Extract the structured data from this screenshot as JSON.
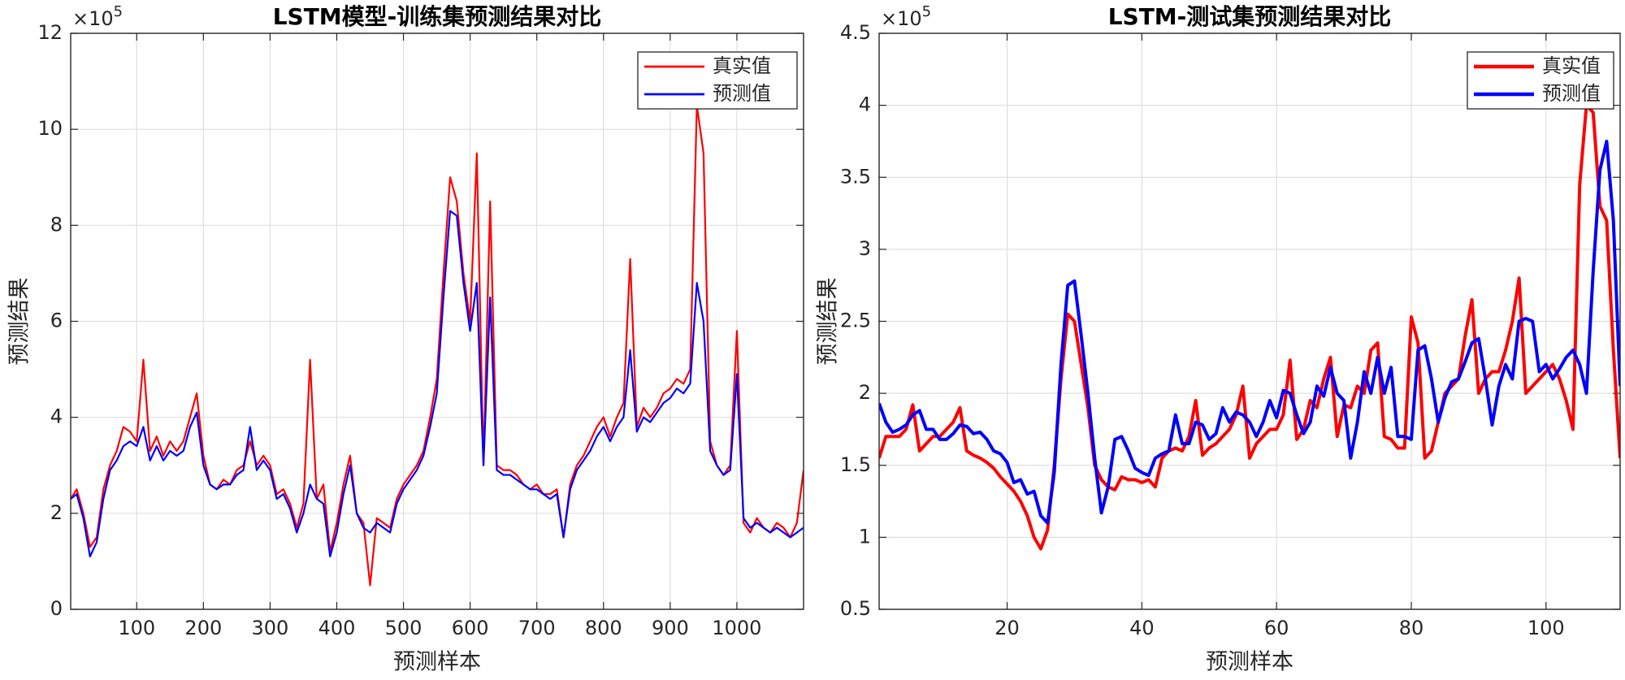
{
  "chart_data": [
    {
      "type": "line",
      "title": "LSTM模型-训练集预测结果对比",
      "xlabel": "预测样本",
      "ylabel": "预测结果",
      "y_multiplier": {
        "base": "×10",
        "power": "5"
      },
      "x": [
        1,
        10,
        20,
        30,
        40,
        50,
        60,
        70,
        80,
        90,
        100,
        110,
        120,
        130,
        140,
        150,
        160,
        170,
        180,
        190,
        200,
        210,
        220,
        230,
        240,
        250,
        260,
        270,
        280,
        290,
        300,
        310,
        320,
        330,
        340,
        350,
        360,
        370,
        380,
        390,
        400,
        410,
        420,
        430,
        440,
        450,
        460,
        470,
        480,
        490,
        500,
        510,
        520,
        530,
        540,
        550,
        560,
        570,
        580,
        590,
        600,
        610,
        620,
        630,
        640,
        650,
        660,
        670,
        680,
        690,
        700,
        710,
        720,
        730,
        740,
        750,
        760,
        770,
        780,
        790,
        800,
        810,
        820,
        830,
        840,
        850,
        860,
        870,
        880,
        890,
        900,
        910,
        920,
        930,
        940,
        950,
        960,
        970,
        980,
        990,
        1000,
        1010,
        1020,
        1030,
        1040,
        1050,
        1060,
        1070,
        1080,
        1090,
        1100
      ],
      "series": [
        {
          "name": "真实值",
          "color": "#ff0000",
          "values": [
            2.3,
            2.5,
            2.0,
            1.3,
            1.5,
            2.5,
            3.0,
            3.3,
            3.8,
            3.7,
            3.5,
            5.2,
            3.3,
            3.6,
            3.2,
            3.5,
            3.3,
            3.5,
            4.0,
            4.5,
            3.2,
            2.6,
            2.5,
            2.7,
            2.6,
            2.9,
            3.0,
            3.5,
            3.0,
            3.2,
            3.0,
            2.4,
            2.5,
            2.2,
            1.7,
            2.2,
            5.2,
            2.3,
            2.6,
            1.2,
            1.8,
            2.6,
            3.2,
            2.0,
            1.8,
            0.5,
            1.9,
            1.8,
            1.7,
            2.3,
            2.6,
            2.8,
            3.0,
            3.3,
            4.0,
            4.8,
            7.0,
            9.0,
            8.5,
            7.0,
            6.0,
            9.5,
            3.0,
            8.5,
            3.0,
            2.9,
            2.9,
            2.8,
            2.6,
            2.5,
            2.6,
            2.4,
            2.4,
            2.5,
            1.5,
            2.6,
            3.0,
            3.2,
            3.5,
            3.8,
            4.0,
            3.6,
            4.0,
            4.3,
            7.3,
            3.8,
            4.2,
            4.0,
            4.2,
            4.5,
            4.6,
            4.8,
            4.7,
            5.0,
            10.5,
            9.5,
            3.5,
            3.0,
            2.8,
            3.0,
            5.8,
            1.8,
            1.6,
            1.9,
            1.7,
            1.6,
            1.8,
            1.7,
            1.5,
            1.8,
            2.9
          ]
        },
        {
          "name": "预测值",
          "color": "#0000ff",
          "values": [
            2.3,
            2.4,
            1.9,
            1.1,
            1.4,
            2.3,
            2.9,
            3.1,
            3.4,
            3.5,
            3.4,
            3.8,
            3.1,
            3.4,
            3.1,
            3.3,
            3.2,
            3.3,
            3.8,
            4.1,
            3.0,
            2.6,
            2.5,
            2.6,
            2.6,
            2.8,
            2.9,
            3.8,
            2.9,
            3.1,
            2.9,
            2.3,
            2.4,
            2.1,
            1.6,
            2.0,
            2.6,
            2.3,
            2.2,
            1.1,
            1.6,
            2.4,
            3.0,
            2.0,
            1.7,
            1.6,
            1.8,
            1.7,
            1.6,
            2.2,
            2.5,
            2.7,
            2.9,
            3.2,
            3.8,
            4.5,
            6.5,
            8.3,
            8.2,
            6.8,
            5.8,
            6.8,
            3.0,
            6.5,
            2.9,
            2.8,
            2.8,
            2.7,
            2.6,
            2.5,
            2.5,
            2.4,
            2.3,
            2.4,
            1.5,
            2.5,
            2.9,
            3.1,
            3.3,
            3.6,
            3.8,
            3.5,
            3.8,
            4.0,
            5.4,
            3.7,
            4.0,
            3.9,
            4.1,
            4.3,
            4.4,
            4.6,
            4.5,
            4.7,
            6.8,
            6.0,
            3.3,
            3.0,
            2.8,
            2.9,
            4.9,
            1.9,
            1.7,
            1.8,
            1.7,
            1.6,
            1.7,
            1.6,
            1.5,
            1.6,
            1.7
          ]
        }
      ],
      "xlim": [
        1,
        1100
      ],
      "ylim": [
        0,
        12
      ],
      "xticks": [
        100,
        200,
        300,
        400,
        500,
        600,
        700,
        800,
        900,
        1000
      ],
      "yticks": [
        0,
        2,
        4,
        6,
        8,
        10,
        12
      ],
      "grid": true,
      "legend": "upper right"
    },
    {
      "type": "line",
      "title": "LSTM-测试集预测结果对比",
      "xlabel": "预测样本",
      "ylabel": "预测结果",
      "y_multiplier": {
        "base": "×10",
        "power": "5"
      },
      "x": [
        1,
        2,
        3,
        4,
        5,
        6,
        7,
        8,
        9,
        10,
        11,
        12,
        13,
        14,
        15,
        16,
        17,
        18,
        19,
        20,
        21,
        22,
        23,
        24,
        25,
        26,
        27,
        28,
        29,
        30,
        31,
        32,
        33,
        34,
        35,
        36,
        37,
        38,
        39,
        40,
        41,
        42,
        43,
        44,
        45,
        46,
        47,
        48,
        49,
        50,
        51,
        52,
        53,
        54,
        55,
        56,
        57,
        58,
        59,
        60,
        61,
        62,
        63,
        64,
        65,
        66,
        67,
        68,
        69,
        70,
        71,
        72,
        73,
        74,
        75,
        76,
        77,
        78,
        79,
        80,
        81,
        82,
        83,
        84,
        85,
        86,
        87,
        88,
        89,
        90,
        91,
        92,
        93,
        94,
        95,
        96,
        97,
        98,
        99,
        100,
        101,
        102,
        103,
        104,
        105,
        106,
        107,
        108,
        109,
        110,
        111
      ],
      "series": [
        {
          "name": "真实值",
          "color": "#ff0000",
          "values": [
            1.55,
            1.7,
            1.7,
            1.7,
            1.75,
            1.92,
            1.6,
            1.65,
            1.7,
            1.7,
            1.75,
            1.8,
            1.9,
            1.6,
            1.57,
            1.55,
            1.52,
            1.48,
            1.42,
            1.37,
            1.32,
            1.25,
            1.15,
            1.0,
            0.92,
            1.05,
            1.5,
            2.1,
            2.55,
            2.5,
            2.2,
            1.9,
            1.5,
            1.4,
            1.35,
            1.33,
            1.42,
            1.4,
            1.4,
            1.38,
            1.4,
            1.35,
            1.55,
            1.6,
            1.62,
            1.6,
            1.7,
            1.95,
            1.57,
            1.62,
            1.65,
            1.7,
            1.75,
            1.85,
            2.05,
            1.55,
            1.65,
            1.7,
            1.75,
            1.75,
            1.85,
            2.23,
            1.68,
            1.75,
            1.95,
            1.9,
            2.1,
            2.25,
            1.7,
            1.92,
            1.9,
            2.05,
            2.0,
            2.3,
            2.35,
            1.7,
            1.68,
            1.62,
            1.62,
            2.53,
            2.35,
            1.55,
            1.6,
            1.8,
            2.0,
            2.05,
            2.1,
            2.4,
            2.65,
            2.0,
            2.1,
            2.15,
            2.15,
            2.3,
            2.5,
            2.8,
            2.0,
            2.05,
            2.1,
            2.15,
            2.2,
            2.1,
            1.95,
            1.75,
            3.45,
            4.0,
            3.95,
            3.3,
            3.2,
            2.3,
            1.55
          ]
        },
        {
          "name": "预测值",
          "color": "#0000ff",
          "values": [
            1.93,
            1.8,
            1.73,
            1.75,
            1.78,
            1.85,
            1.88,
            1.75,
            1.75,
            1.68,
            1.68,
            1.72,
            1.78,
            1.77,
            1.72,
            1.73,
            1.68,
            1.6,
            1.58,
            1.52,
            1.38,
            1.4,
            1.3,
            1.32,
            1.15,
            1.1,
            1.45,
            2.2,
            2.75,
            2.78,
            2.4,
            2.0,
            1.55,
            1.17,
            1.35,
            1.68,
            1.7,
            1.6,
            1.48,
            1.45,
            1.43,
            1.55,
            1.58,
            1.6,
            1.85,
            1.65,
            1.65,
            1.8,
            1.78,
            1.68,
            1.72,
            1.9,
            1.8,
            1.87,
            1.85,
            1.8,
            1.7,
            1.8,
            1.95,
            1.83,
            2.02,
            2.0,
            1.85,
            1.72,
            1.8,
            2.05,
            1.98,
            2.18,
            2.0,
            1.95,
            1.55,
            1.8,
            2.15,
            2.0,
            2.25,
            2.0,
            2.18,
            1.7,
            1.7,
            1.68,
            2.3,
            2.33,
            2.1,
            1.8,
            1.97,
            2.08,
            2.1,
            2.22,
            2.35,
            2.38,
            2.1,
            1.78,
            2.05,
            2.2,
            2.1,
            2.5,
            2.52,
            2.5,
            2.15,
            2.2,
            2.1,
            2.17,
            2.25,
            2.3,
            2.2,
            2.0,
            2.85,
            3.55,
            3.75,
            3.2,
            2.05
          ]
        }
      ],
      "xlim": [
        1,
        111
      ],
      "ylim": [
        0.5,
        4.5
      ],
      "xticks": [
        20,
        40,
        60,
        80,
        100
      ],
      "yticks": [
        0.5,
        1,
        1.5,
        2,
        2.5,
        3,
        3.5,
        4,
        4.5
      ],
      "grid": true,
      "legend": "upper right"
    }
  ]
}
